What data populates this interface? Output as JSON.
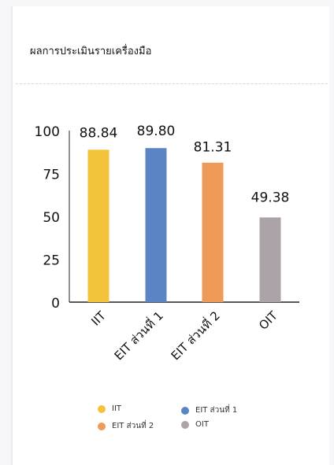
{
  "card": {
    "title": "ผลการประเมินรายเครื่องมือ"
  },
  "chart_data": {
    "type": "bar",
    "title": "",
    "xlabel": "",
    "ylabel": "",
    "categories": [
      "IIT",
      "EIT ส่วนที่ 1",
      "EIT ส่วนที่ 2",
      "OIT"
    ],
    "values": [
      88.84,
      89.8,
      81.31,
      49.38
    ],
    "value_labels": [
      "88.84",
      "89.80",
      "81.31",
      "49.38"
    ],
    "colors": [
      "#f3c33b",
      "#5b84c4",
      "#ee9a59",
      "#aca3a8"
    ],
    "ylim": [
      0,
      100
    ],
    "yticks": [
      0,
      25,
      50,
      75,
      100
    ],
    "grid": false,
    "legend_position": "bottom"
  },
  "legend": [
    {
      "label": "IIT",
      "color": "#f3c33b"
    },
    {
      "label": "EIT ส่วนที่ 1",
      "color": "#5b84c4"
    },
    {
      "label": "EIT ส่วนที่ 2",
      "color": "#ee9a59"
    },
    {
      "label": "OIT",
      "color": "#aca3a8"
    }
  ]
}
